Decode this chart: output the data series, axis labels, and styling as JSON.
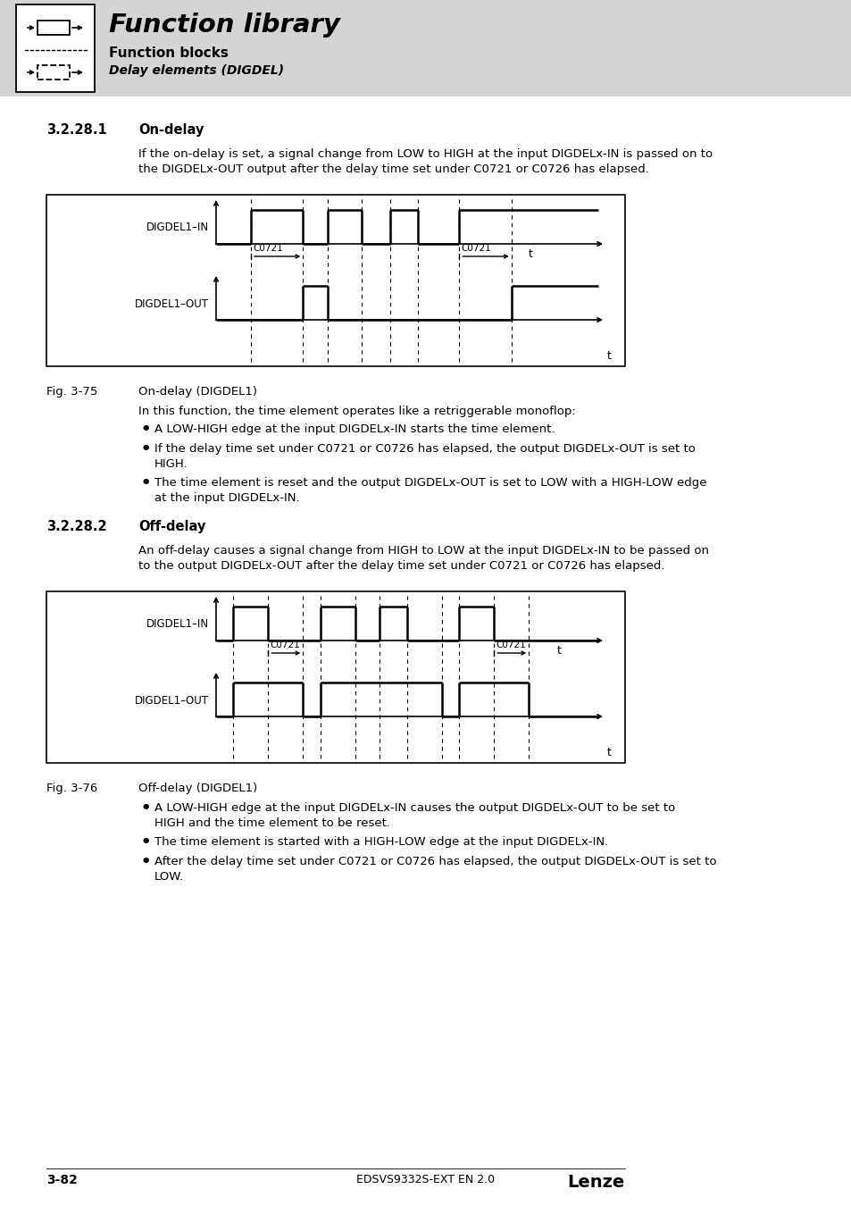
{
  "page_bg": "#ffffff",
  "header_bg": "#d4d4d4",
  "header_title": "Function library",
  "header_sub1": "Function blocks",
  "header_sub2": "Delay elements (DIGDEL)",
  "section1_num": "3.2.28.1",
  "section1_title": "On-delay",
  "section1_intro": "If the on-delay is set, a signal change from LOW to HIGH at the input DIGDELx-IN is passed on to\nthe DIGDELx-OUT output after the delay time set under C0721 or C0726 has elapsed.",
  "fig1_label": "Fig. 3-75",
  "fig1_caption": "On-delay (DIGDEL1)",
  "section1_body": "In this function, the time element operates like a retriggerable monoflop:",
  "section1_bullets": [
    "A LOW-HIGH edge at the input DIGDELx-IN starts the time element.",
    "If the delay time set under C0721 or C0726 has elapsed, the output DIGDELx-OUT is set to\nHIGH.",
    "The time element is reset and the output DIGDELx-OUT is set to LOW with a HIGH-LOW edge\nat the input DIGDELx-IN."
  ],
  "section2_num": "3.2.28.2",
  "section2_title": "Off-delay",
  "section2_intro": "An off-delay causes a signal change from HIGH to LOW at the input DIGDELx-IN to be passed on\nto the output DIGDELx-OUT after the delay time set under C0721 or C0726 has elapsed.",
  "fig2_label": "Fig. 3-76",
  "fig2_caption": "Off-delay (DIGDEL1)",
  "section2_bullets": [
    "A LOW-HIGH edge at the input DIGDELx-IN causes the output DIGDELx-OUT to be set to\nHIGH and the time element to be reset.",
    "The time element is started with a HIGH-LOW edge at the input DIGDELx-IN.",
    "After the delay time set under C0721 or C0726 has elapsed, the output DIGDELx-OUT is set to\nLOW."
  ],
  "footer_left": "3-82",
  "footer_center": "EDSVS9332S-EXT EN 2.0",
  "footer_right": "Lenze"
}
